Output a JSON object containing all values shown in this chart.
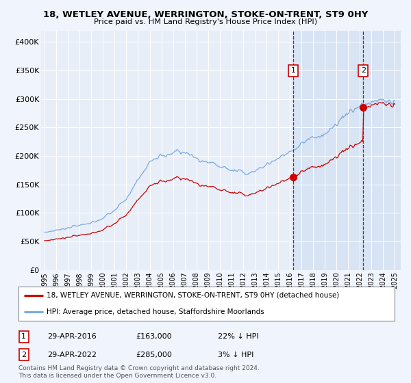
{
  "title1": "18, WETLEY AVENUE, WERRINGTON, STOKE-ON-TRENT, ST9 0HY",
  "title2": "Price paid vs. HM Land Registry's House Price Index (HPI)",
  "legend_line1": "18, WETLEY AVENUE, WERRINGTON, STOKE-ON-TRENT, ST9 0HY (detached house)",
  "legend_line2": "HPI: Average price, detached house, Staffordshire Moorlands",
  "purchase1_date": "29-APR-2016",
  "purchase1_price": 163000,
  "purchase1_year": 2016.29,
  "purchase1_label": "22% ↓ HPI",
  "purchase2_date": "29-APR-2022",
  "purchase2_price": 285000,
  "purchase2_year": 2022.29,
  "purchase2_label": "3% ↓ HPI",
  "footer1": "Contains HM Land Registry data © Crown copyright and database right 2024.",
  "footer2": "This data is licensed under the Open Government Licence v3.0.",
  "background_color": "#f0f4fc",
  "plot_bg_color": "#e8eef8",
  "highlight_color": "#d8e4f4",
  "hpi_color": "#7aaadd",
  "price_color": "#cc0000",
  "vline_color": "#cc0000",
  "grid_color": "#ffffff",
  "ylim": [
    0,
    420000
  ],
  "xlim_min": 1994.7,
  "xlim_max": 2025.5,
  "yticks": [
    0,
    50000,
    100000,
    150000,
    200000,
    250000,
    300000,
    350000,
    400000
  ]
}
